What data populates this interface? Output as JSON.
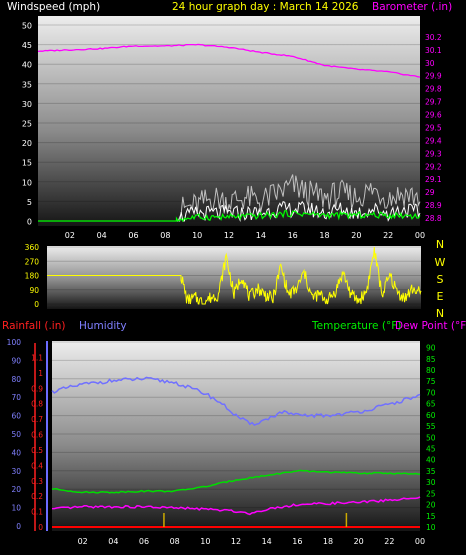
{
  "header": {
    "windspeed_label": "Windspeed (mph)",
    "title": "24 hour graph day : March 14 2026",
    "barometer_label": "Barometer (.in)"
  },
  "lower_header": {
    "rainfall_label": "Rainfall (.in)",
    "humidity_label": "Humidity",
    "temperature_label": "Temperature (°F)",
    "dewpoint_label": "Dew Point (°F)"
  },
  "compass_letters": [
    "N",
    "W",
    "S",
    "E",
    "N"
  ],
  "colors": {
    "windspeed": "#ffffff",
    "windgust": "#c0c0c0",
    "wind_avg": "#00ff00",
    "barometer": "#ff00ff",
    "direction": "#ffff00",
    "humidity": "#7070ff",
    "temperature": "#00dd00",
    "dewpoint": "#ff00ff",
    "rain_rate": "#ff0000",
    "rain_marks": "#ccaa00",
    "header_text": "#ffff00"
  },
  "chart_data": [
    {
      "type": "line",
      "name": "wind-barometer",
      "x_ticks": [
        "02",
        "04",
        "06",
        "08",
        "10",
        "12",
        "14",
        "16",
        "18",
        "20",
        "22",
        "00"
      ],
      "xlim": [
        0,
        24
      ],
      "y_left": {
        "label": "Windspeed (mph)",
        "lim": [
          0,
          50
        ],
        "ticks": [
          "0",
          "5",
          "10",
          "15",
          "20",
          "25",
          "30",
          "35",
          "40",
          "45",
          "50"
        ]
      },
      "y_right": {
        "label": "Barometer (.in)",
        "lim": [
          28.8,
          30.3
        ],
        "ticks": [
          "28.8",
          "28.9",
          "29",
          "29.1",
          "29.2",
          "29.3",
          "29.4",
          "29.5",
          "29.6",
          "29.7",
          "29.8",
          "29.9",
          "30",
          "30.1",
          "30.2"
        ]
      },
      "series": [
        {
          "name": "Barometer",
          "axis": "right",
          "points": [
            [
              0,
              30.09
            ],
            [
              2,
              30.1
            ],
            [
              4,
              30.11
            ],
            [
              6,
              30.13
            ],
            [
              8,
              30.13
            ],
            [
              10,
              30.14
            ],
            [
              12,
              30.12
            ],
            [
              14,
              30.08
            ],
            [
              16,
              30.05
            ],
            [
              18,
              29.98
            ],
            [
              20,
              29.95
            ],
            [
              22,
              29.93
            ],
            [
              24,
              29.89
            ]
          ]
        },
        {
          "name": "Wind gust",
          "axis": "left",
          "points": [
            [
              0,
              0
            ],
            [
              8.7,
              0
            ],
            [
              9,
              3
            ],
            [
              10,
              4
            ],
            [
              11,
              6
            ],
            [
              12,
              5
            ],
            [
              13,
              6
            ],
            [
              14,
              5
            ],
            [
              15,
              7
            ],
            [
              16,
              9
            ],
            [
              17,
              7
            ],
            [
              18,
              6
            ],
            [
              19,
              7
            ],
            [
              20,
              6
            ],
            [
              21,
              8
            ],
            [
              22,
              6
            ],
            [
              23,
              7
            ],
            [
              24,
              6
            ]
          ]
        },
        {
          "name": "Wind speed",
          "axis": "left",
          "points": [
            [
              0,
              0
            ],
            [
              8.7,
              0
            ],
            [
              9,
              1
            ],
            [
              10,
              2
            ],
            [
              11,
              2
            ],
            [
              12,
              2
            ],
            [
              13,
              2
            ],
            [
              14,
              2
            ],
            [
              15,
              3
            ],
            [
              16,
              3
            ],
            [
              17,
              3
            ],
            [
              18,
              2
            ],
            [
              19,
              3
            ],
            [
              20,
              2
            ],
            [
              21,
              3
            ],
            [
              22,
              2
            ],
            [
              23,
              3
            ],
            [
              24,
              2
            ]
          ]
        },
        {
          "name": "Wind average",
          "axis": "left",
          "points": [
            [
              0,
              0
            ],
            [
              8.7,
              0
            ],
            [
              9,
              0.5
            ],
            [
              10,
              1
            ],
            [
              12,
              1
            ],
            [
              14,
              1.3
            ],
            [
              16,
              2
            ],
            [
              18,
              1.5
            ],
            [
              20,
              1.5
            ],
            [
              22,
              1.5
            ],
            [
              24,
              1.3
            ]
          ]
        }
      ]
    },
    {
      "type": "line",
      "name": "wind-direction",
      "xlim": [
        0,
        24
      ],
      "y_left": {
        "lim": [
          0,
          360
        ],
        "ticks": [
          "0",
          "90",
          "180",
          "270",
          "360"
        ]
      },
      "series": [
        {
          "name": "Direction",
          "points": [
            [
              0,
              180
            ],
            [
              8.6,
              180
            ],
            [
              9,
              20
            ],
            [
              9.5,
              40
            ],
            [
              10,
              10
            ],
            [
              10.5,
              40
            ],
            [
              11,
              60
            ],
            [
              11.5,
              300
            ],
            [
              12,
              60
            ],
            [
              12.5,
              180
            ],
            [
              13,
              40
            ],
            [
              13.5,
              100
            ],
            [
              14,
              60
            ],
            [
              14.5,
              30
            ],
            [
              15,
              240
            ],
            [
              15.5,
              60
            ],
            [
              16,
              90
            ],
            [
              16.5,
              200
            ],
            [
              17,
              40
            ],
            [
              17.5,
              60
            ],
            [
              18,
              20
            ],
            [
              18.5,
              80
            ],
            [
              19,
              200
            ],
            [
              19.5,
              60
            ],
            [
              20,
              20
            ],
            [
              20.5,
              80
            ],
            [
              21,
              340
            ],
            [
              21.5,
              60
            ],
            [
              22,
              180
            ],
            [
              22.5,
              70
            ],
            [
              23,
              40
            ],
            [
              23.5,
              100
            ],
            [
              24,
              60
            ]
          ]
        }
      ]
    },
    {
      "type": "line",
      "name": "temp-humidity-rain",
      "xlim": [
        0,
        24
      ],
      "x_ticks": [
        "02",
        "04",
        "06",
        "08",
        "10",
        "12",
        "14",
        "16",
        "18",
        "20",
        "22",
        "00"
      ],
      "y_humidity": {
        "lim": [
          0,
          100
        ],
        "ticks": [
          "0",
          "10",
          "20",
          "30",
          "40",
          "50",
          "60",
          "70",
          "80",
          "90",
          "100"
        ]
      },
      "y_rain": {
        "lim": [
          0,
          1.2
        ],
        "ticks": [
          "0",
          "0.1",
          "0.2",
          "0.3",
          "0.4",
          "0.5",
          "0.6",
          "0.7",
          "0.8",
          "0.9",
          "1",
          "1.1"
        ]
      },
      "y_temp": {
        "lim": [
          10,
          92.5
        ],
        "ticks": [
          "10",
          "15",
          "20",
          "25",
          "30",
          "35",
          "40",
          "45",
          "50",
          "55",
          "60",
          "65",
          "70",
          "75",
          "80",
          "85",
          "90"
        ]
      },
      "series": [
        {
          "name": "Humidity",
          "axis": "humidity",
          "points": [
            [
              0,
              73
            ],
            [
              2,
              77
            ],
            [
              4,
              79
            ],
            [
              6,
              80
            ],
            [
              8,
              78
            ],
            [
              10,
              72
            ],
            [
              11,
              67
            ],
            [
              12,
              60
            ],
            [
              13,
              55
            ],
            [
              14,
              58
            ],
            [
              15,
              62
            ],
            [
              16,
              60
            ],
            [
              18,
              60
            ],
            [
              20,
              62
            ],
            [
              22,
              66
            ],
            [
              24,
              71
            ]
          ]
        },
        {
          "name": "Temperature",
          "axis": "temp",
          "points": [
            [
              0,
              27
            ],
            [
              2,
              25.5
            ],
            [
              4,
              25.5
            ],
            [
              6,
              26
            ],
            [
              8,
              26
            ],
            [
              10,
              28
            ],
            [
              12,
              31
            ],
            [
              14,
              33
            ],
            [
              15,
              34
            ],
            [
              16,
              35
            ],
            [
              18,
              34.5
            ],
            [
              20,
              34
            ],
            [
              22,
              34
            ],
            [
              24,
              33.5
            ]
          ]
        },
        {
          "name": "Dew Point",
          "axis": "temp",
          "points": [
            [
              0,
              18
            ],
            [
              2,
              19
            ],
            [
              4,
              19
            ],
            [
              6,
              19
            ],
            [
              8,
              18.5
            ],
            [
              10,
              18
            ],
            [
              12,
              17
            ],
            [
              13,
              16
            ],
            [
              14,
              18
            ],
            [
              16,
              20
            ],
            [
              18,
              20.5
            ],
            [
              20,
              21
            ],
            [
              22,
              22
            ],
            [
              24,
              23
            ]
          ]
        },
        {
          "name": "Rain rate",
          "axis": "rain",
          "points": [
            [
              0,
              0
            ],
            [
              24,
              0
            ]
          ]
        }
      ],
      "rain_marks": [
        7.3,
        19.2
      ]
    }
  ]
}
